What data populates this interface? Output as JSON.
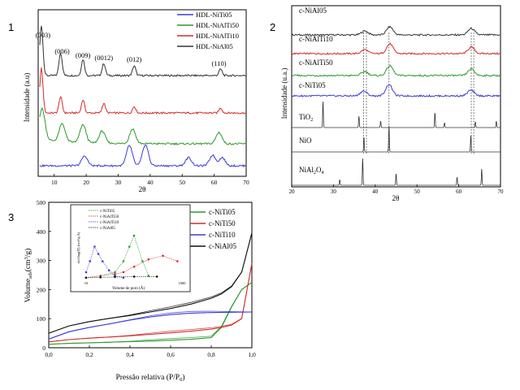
{
  "panels": [
    {
      "number": "1",
      "type": "line",
      "xlabel": "2θ",
      "ylabel": "Intensidade (a.u)",
      "xlim": [
        5,
        70
      ],
      "xticks": [
        10,
        20,
        30,
        40,
        50,
        60,
        70
      ],
      "legend": [
        {
          "name": "HDL-NiTi05",
          "color": "#3b3bd6"
        },
        {
          "name": "HDL-NiAlTi50",
          "color": "#2a9a2a"
        },
        {
          "name": "HDL-NiAlTi10",
          "color": "#d42a2a"
        },
        {
          "name": "HDL-NiAl05",
          "color": "#333333"
        }
      ],
      "peak_labels": [
        {
          "text": "(003)",
          "x": 6.5
        },
        {
          "text": "(006)",
          "x": 12.5
        },
        {
          "text": "(009)",
          "x": 19
        },
        {
          "text": "(0012)",
          "x": 25.5
        },
        {
          "text": "(012)",
          "x": 35
        },
        {
          "text": "(110)",
          "x": 61.5
        }
      ]
    },
    {
      "number": "2",
      "type": "line",
      "xlabel": "2θ",
      "ylabel": "Intensidade (u.a.)",
      "xlim": [
        20,
        70
      ],
      "xticks": [
        20,
        30,
        40,
        50,
        60,
        70
      ],
      "trace_labels": [
        {
          "text": "c-NiAl05",
          "color": "#333333"
        },
        {
          "text": "c-NiAlTi10",
          "color": "#d42a2a"
        },
        {
          "text": "c-NiAlTi50",
          "color": "#2a9a2a"
        },
        {
          "text": "c-NiTi05",
          "color": "#3b3bd6"
        },
        {
          "text": "TiO",
          "sub": "2",
          "after": "",
          "color": "#333333"
        },
        {
          "text": "NiO",
          "sub": "",
          "after": "",
          "color": "#333333"
        },
        {
          "text": "NiAl",
          "sub": "2",
          "after": "O",
          "sub2": "4",
          "color": "#333333"
        }
      ],
      "reference_lines": [
        37.2,
        37.9,
        43.3,
        63.0,
        63.6
      ]
    },
    {
      "number": "3",
      "type": "line",
      "xlabel": "Pressão relativa (P/P",
      "xlabel_sub": "0",
      "xlabel_end": ")",
      "ylabel_main": "Volume",
      "ylabel_sub": "ads",
      "ylabel_unit": "(cm",
      "ylabel_sup": "3",
      "ylabel_end": "/g)",
      "xlim": [
        0,
        1.0
      ],
      "ylim": [
        0,
        500
      ],
      "xticks": [
        "0,0",
        "0,2",
        "0,4",
        "0,6",
        "0,8",
        "1,0"
      ],
      "yticks": [
        "0",
        "100",
        "200",
        "300",
        "400",
        "500"
      ],
      "legend": [
        {
          "name": "c-NiTi05",
          "color": "#2a9a2a"
        },
        {
          "name": "c-NiTi50",
          "color": "#d42a2a"
        },
        {
          "name": "c-NiTi10",
          "color": "#3b3bd6"
        },
        {
          "name": "c-NiAl05",
          "color": "#111111"
        }
      ],
      "inset": {
        "ylabel": "dv/dlog(D) (cm³/g.Å)",
        "xlabel": "Volume de poro (Å)",
        "x_left": "10",
        "x_right": "1000",
        "legend": [
          {
            "name": "c-NiTi05",
            "color": "#2a9a2a"
          },
          {
            "name": "c-NiAlTi50",
            "color": "#d42a2a"
          },
          {
            "name": "c-NiAlTi10",
            "color": "#3b3bd6"
          },
          {
            "name": "c-NiAl05",
            "color": "#111111"
          }
        ]
      }
    }
  ],
  "chart_data": [
    {
      "type": "line",
      "title": "",
      "xlabel": "2θ",
      "ylabel": "Intensidade (a.u)",
      "xlim": [
        5,
        70
      ],
      "series": [
        {
          "name": "HDL-NiAl05",
          "peaks": [
            [
              6.0,
              62
            ],
            [
              12.0,
              28
            ],
            [
              19.0,
              20
            ],
            [
              25.5,
              15
            ],
            [
              35.0,
              12
            ],
            [
              62.0,
              8
            ]
          ]
        },
        {
          "name": "HDL-NiAlTi10",
          "peaks": [
            [
              6.0,
              55
            ],
            [
              12.0,
              20
            ],
            [
              19.0,
              16
            ],
            [
              25.5,
              12
            ],
            [
              35.0,
              8
            ],
            [
              62.0,
              6
            ]
          ]
        },
        {
          "name": "HDL-NiAlTi50",
          "peaks": [
            [
              6.2,
              38
            ],
            [
              12.5,
              22
            ],
            [
              19.0,
              22
            ],
            [
              25.0,
              15
            ],
            [
              34.5,
              18
            ],
            [
              61.5,
              14
            ]
          ]
        },
        {
          "name": "HDL-NiTi05",
          "peaks": [
            [
              19.5,
              12
            ],
            [
              33.5,
              25
            ],
            [
              38.5,
              26
            ],
            [
              52.0,
              10
            ],
            [
              59.5,
              13
            ],
            [
              62.5,
              10
            ]
          ]
        }
      ]
    },
    {
      "type": "line",
      "title": "",
      "xlabel": "2θ",
      "ylabel": "Intensidade (u.a.)",
      "xlim": [
        20,
        70
      ],
      "series": [
        {
          "name": "c-NiAl05",
          "peaks": [
            [
              37.5,
              5
            ],
            [
              43.5,
              10
            ],
            [
              63.0,
              8
            ]
          ]
        },
        {
          "name": "c-NiAlTi10",
          "peaks": [
            [
              37.5,
              5
            ],
            [
              43.5,
              12
            ],
            [
              63.0,
              8
            ]
          ]
        },
        {
          "name": "c-NiAlTi50",
          "peaks": [
            [
              37.5,
              5
            ],
            [
              43.5,
              12
            ],
            [
              63.0,
              8
            ]
          ]
        },
        {
          "name": "c-NiTi05",
          "peaks": [
            [
              37.2,
              6
            ],
            [
              43.3,
              14
            ],
            [
              62.9,
              7
            ]
          ]
        },
        {
          "name": "TiO2",
          "peaks": [
            [
              27.5,
              32
            ],
            [
              36.1,
              14
            ],
            [
              41.3,
              8
            ],
            [
              54.3,
              18
            ],
            [
              56.6,
              6
            ],
            [
              64.0,
              7
            ],
            [
              69.0,
              8
            ]
          ]
        },
        {
          "name": "NiO",
          "peaks": [
            [
              37.3,
              18
            ],
            [
              43.3,
              32
            ],
            [
              62.9,
              20
            ]
          ]
        },
        {
          "name": "NiAl2O4",
          "peaks": [
            [
              31.5,
              7
            ],
            [
              37.0,
              33
            ],
            [
              45.0,
              14
            ],
            [
              59.6,
              10
            ],
            [
              65.5,
              20
            ]
          ]
        }
      ]
    },
    {
      "type": "line",
      "title": "",
      "xlabel": "Pressão relativa (P/P0)",
      "ylabel": "Volume ads (cm3/g)",
      "xlim": [
        0,
        1.0
      ],
      "ylim": [
        0,
        500
      ],
      "series": [
        {
          "name": "c-NiTi05",
          "x": [
            0.0,
            0.1,
            0.2,
            0.3,
            0.4,
            0.5,
            0.6,
            0.7,
            0.8,
            0.85,
            0.9,
            0.95,
            1.0
          ],
          "y": [
            12,
            15,
            17,
            19,
            21,
            23,
            26,
            29,
            35,
            70,
            140,
            200,
            225
          ]
        },
        {
          "name": "c-NiTi50",
          "x": [
            0.0,
            0.1,
            0.2,
            0.3,
            0.4,
            0.5,
            0.6,
            0.7,
            0.8,
            0.85,
            0.9,
            0.95,
            1.0
          ],
          "y": [
            20,
            28,
            33,
            37,
            41,
            46,
            51,
            57,
            64,
            70,
            78,
            100,
            290
          ]
        },
        {
          "name": "c-NiTi10",
          "x": [
            0.0,
            0.1,
            0.2,
            0.3,
            0.4,
            0.5,
            0.6,
            0.7,
            0.8,
            0.9,
            1.0
          ],
          "y": [
            30,
            55,
            70,
            82,
            95,
            106,
            114,
            119,
            121,
            122,
            123
          ]
        },
        {
          "name": "c-NiAl05",
          "x": [
            0.0,
            0.1,
            0.2,
            0.3,
            0.4,
            0.5,
            0.6,
            0.7,
            0.8,
            0.85,
            0.9,
            0.95,
            1.0
          ],
          "y": [
            50,
            75,
            90,
            101,
            111,
            123,
            135,
            150,
            170,
            185,
            210,
            260,
            395
          ]
        }
      ],
      "inset": {
        "type": "scatter",
        "xlabel": "Volume de poro (Å)",
        "ylabel": "dv/dlog(D) (cm³/g.Å)",
        "series": [
          {
            "name": "c-NiTi05",
            "x": [
              10,
              20,
              40,
              60,
              80,
              100,
              150,
              200
            ],
            "y": [
              0.05,
              0.1,
              0.2,
              0.5,
              0.9,
              1.2,
              0.5,
              0.1
            ]
          },
          {
            "name": "c-NiAlTi50",
            "x": [
              10,
              20,
              40,
              60,
              100,
              200,
              400,
              800
            ],
            "y": [
              0.05,
              0.1,
              0.15,
              0.2,
              0.35,
              0.55,
              0.65,
              0.5
            ]
          },
          {
            "name": "c-NiAlTi10",
            "x": [
              10,
              12,
              15,
              18,
              22,
              30,
              40,
              60
            ],
            "y": [
              0.2,
              0.5,
              0.9,
              0.7,
              0.5,
              0.25,
              0.1,
              0.05
            ]
          },
          {
            "name": "c-NiAl05",
            "x": [
              10,
              20,
              40,
              100,
              300
            ],
            "y": [
              0.05,
              0.06,
              0.07,
              0.08,
              0.08
            ]
          }
        ]
      }
    }
  ]
}
